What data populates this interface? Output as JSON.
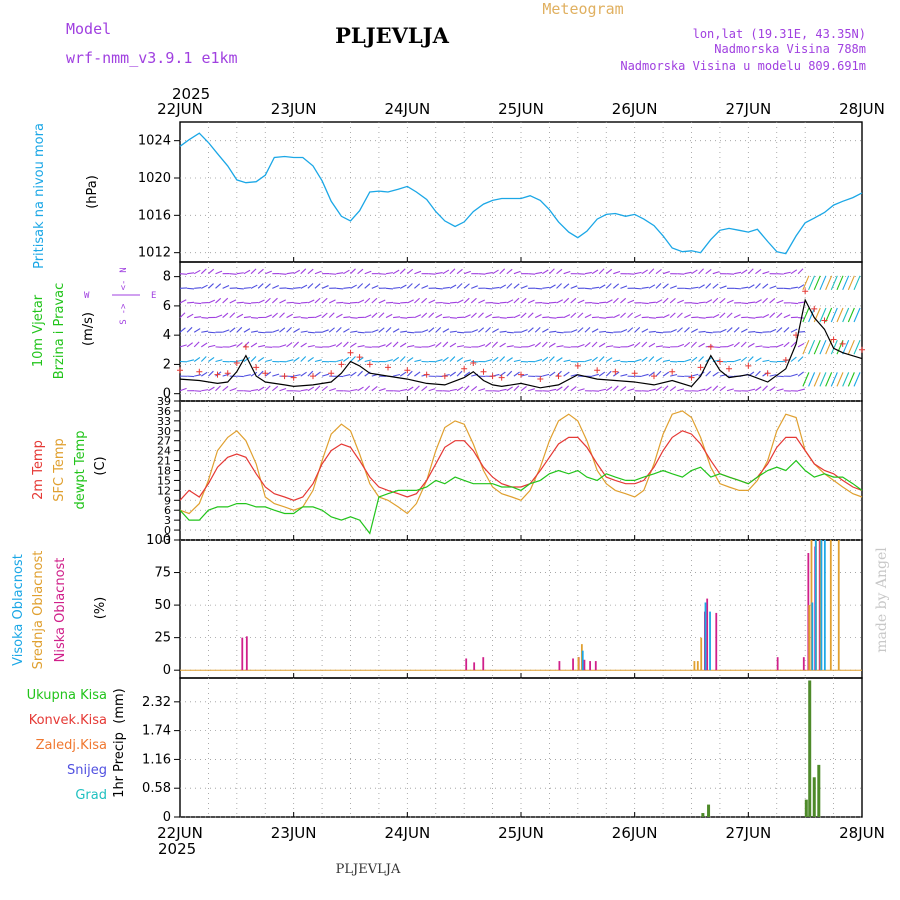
{
  "header": {
    "model_label": "Model",
    "model_name": "wrf-nmm_v3.9.1 e1km",
    "station": "PLJEVLJA",
    "meteogram": "Meteogram",
    "lonlat": "lon,lat (19.31E, 43.35N)",
    "altitude": "Nadmorska Visina 788m",
    "model_altitude": "Nadmorska Visina u modelu 809.691m"
  },
  "footer": {
    "station": "PLJEVLJA",
    "credit": "made by Angel"
  },
  "time_axis": {
    "year_top": "2025",
    "year_bottom": "2025",
    "days": [
      "22JUN",
      "23JUN",
      "24JUN",
      "25JUN",
      "26JUN",
      "27JUN",
      "28JUN"
    ]
  },
  "colors": {
    "pressure": "#1ba7e6",
    "t2m": "#e53935",
    "sfc": "#e0a030",
    "dewpt": "#22c41b",
    "precip": "#4e8a2a",
    "cloud_low": "#d0208a",
    "cloud_mid": "#e0a030",
    "cloud_high": "#1ba7e6",
    "purple": "#a040e0"
  },
  "chart_data": [
    {
      "type": "line",
      "name": "pressure",
      "ylabel_1": "Pritisak na nivou mora",
      "ylabel_2": "(hPa)",
      "ylim": [
        1011,
        1026
      ],
      "yticks": [
        "1012",
        "1016",
        "1020",
        "1024"
      ],
      "x_days": [
        0,
        0.08,
        0.17,
        0.25,
        0.33,
        0.42,
        0.5,
        0.58,
        0.67,
        0.75,
        0.83,
        0.92,
        1,
        1.08,
        1.17,
        1.25,
        1.33,
        1.42,
        1.5,
        1.58,
        1.67,
        1.75,
        1.83,
        1.92,
        2,
        2.08,
        2.17,
        2.25,
        2.33,
        2.42,
        2.5,
        2.58,
        2.67,
        2.75,
        2.83,
        2.92,
        3,
        3.08,
        3.17,
        3.25,
        3.33,
        3.42,
        3.5,
        3.58,
        3.67,
        3.75,
        3.83,
        3.92,
        4,
        4.08,
        4.17,
        4.25,
        4.33,
        4.42,
        4.5,
        4.58,
        4.67,
        4.75,
        4.83,
        4.92,
        5,
        5.08,
        5.17,
        5.25,
        5.33,
        5.42,
        5.5,
        5.58,
        5.67,
        5.75,
        5.83,
        5.92,
        6
      ],
      "values": [
        1023.4,
        1024.1,
        1024.8,
        1023.8,
        1022.6,
        1021.3,
        1019.8,
        1019.5,
        1019.6,
        1020.3,
        1022.2,
        1022.3,
        1022.2,
        1022.2,
        1021.3,
        1019.7,
        1017.5,
        1015.9,
        1015.4,
        1016.5,
        1018.5,
        1018.6,
        1018.5,
        1018.8,
        1019.1,
        1018.5,
        1017.7,
        1016.4,
        1015.4,
        1014.8,
        1015.3,
        1016.4,
        1017.2,
        1017.6,
        1017.8,
        1017.8,
        1017.8,
        1018.1,
        1017.6,
        1016.6,
        1015.3,
        1014.2,
        1013.6,
        1014.3,
        1015.6,
        1016.1,
        1016.2,
        1015.9,
        1016.1,
        1015.6,
        1014.9,
        1013.8,
        1012.5,
        1012.1,
        1012.2,
        1012.0,
        1013.4,
        1014.4,
        1014.6,
        1014.4,
        1014.2,
        1014.5,
        1013.2,
        1012.1,
        1011.9,
        1013.8,
        1015.2,
        1015.7,
        1016.3,
        1017.1,
        1017.5,
        1017.9,
        1018.4
      ]
    },
    {
      "type": "line",
      "name": "wind",
      "ylabel_1": "10m Vjetar",
      "ylabel_2": "Brzina i Pravac",
      "ylabel_3": "(m/s)",
      "compass": [
        "N",
        "S",
        "W",
        "E",
        "<-",
        "->"
      ],
      "ylim": [
        -0.5,
        9
      ],
      "yticks": [
        "0",
        "2",
        "4",
        "6",
        "8"
      ],
      "x_days": [
        0,
        0.17,
        0.33,
        0.42,
        0.5,
        0.58,
        0.67,
        0.75,
        0.92,
        1,
        1.17,
        1.33,
        1.42,
        1.5,
        1.58,
        1.67,
        1.83,
        2,
        2.17,
        2.33,
        2.5,
        2.58,
        2.67,
        2.75,
        2.83,
        3,
        3.17,
        3.33,
        3.5,
        3.67,
        3.83,
        4,
        4.17,
        4.33,
        4.5,
        4.58,
        4.67,
        4.75,
        4.83,
        5,
        5.17,
        5.33,
        5.42,
        5.5,
        5.58,
        5.67,
        5.75,
        5.83,
        6
      ],
      "values": [
        1.0,
        0.9,
        0.7,
        0.8,
        1.5,
        2.6,
        1.2,
        0.8,
        0.6,
        0.5,
        0.6,
        0.8,
        1.4,
        2.2,
        1.9,
        1.4,
        1.2,
        1.0,
        0.7,
        0.6,
        1.1,
        1.5,
        0.9,
        0.6,
        0.5,
        0.7,
        0.4,
        0.6,
        1.3,
        1.0,
        0.9,
        0.8,
        0.6,
        0.9,
        0.5,
        1.2,
        2.6,
        1.6,
        1.1,
        1.3,
        0.8,
        1.7,
        3.4,
        6.4,
        5.2,
        4.4,
        3.1,
        2.8,
        2.4
      ],
      "gust_levels": [
        0,
        1,
        2,
        3,
        4,
        5,
        6,
        7,
        8
      ]
    },
    {
      "type": "line",
      "name": "temperature",
      "ylabel_1": "2m Temp",
      "ylabel_2": "SFC Temp",
      "ylabel_3": "dewpt Temp",
      "ylabel_4": "(C)",
      "ylim": [
        -3,
        39
      ],
      "yticks": [
        "-3",
        "0",
        "3",
        "6",
        "9",
        "12",
        "15",
        "18",
        "21",
        "24",
        "27",
        "30",
        "33",
        "36",
        "39"
      ],
      "x_days": [
        0,
        0.08,
        0.17,
        0.25,
        0.33,
        0.42,
        0.5,
        0.58,
        0.67,
        0.75,
        0.83,
        0.92,
        1,
        1.08,
        1.17,
        1.25,
        1.33,
        1.42,
        1.5,
        1.58,
        1.67,
        1.75,
        1.83,
        1.92,
        2,
        2.08,
        2.17,
        2.25,
        2.33,
        2.42,
        2.5,
        2.58,
        2.67,
        2.75,
        2.83,
        2.92,
        3,
        3.08,
        3.17,
        3.25,
        3.33,
        3.42,
        3.5,
        3.58,
        3.67,
        3.75,
        3.83,
        3.92,
        4,
        4.08,
        4.17,
        4.25,
        4.33,
        4.42,
        4.5,
        4.58,
        4.67,
        4.75,
        4.83,
        4.92,
        5,
        5.08,
        5.17,
        5.25,
        5.33,
        5.42,
        5.5,
        5.58,
        5.67,
        5.75,
        5.83,
        5.92,
        6
      ],
      "series": [
        {
          "name": "2m Temp",
          "values": [
            9,
            12,
            10,
            14,
            19,
            22,
            23,
            22,
            17,
            13,
            11,
            10,
            9,
            10,
            14,
            20,
            24,
            26,
            25,
            21,
            16,
            13,
            12,
            11,
            10,
            11,
            15,
            20,
            25,
            27,
            27,
            24,
            19,
            16,
            14,
            13,
            13,
            14,
            18,
            22,
            26,
            28,
            28,
            25,
            20,
            16,
            15,
            14,
            14,
            15,
            19,
            24,
            28,
            30,
            29,
            26,
            21,
            17,
            16,
            15,
            14,
            16,
            20,
            25,
            28,
            28,
            24,
            20,
            18,
            17,
            15,
            13,
            12
          ]
        },
        {
          "name": "SFC Temp",
          "values": [
            6,
            5,
            8,
            15,
            24,
            28,
            30,
            27,
            20,
            10,
            8,
            7,
            6,
            7,
            12,
            21,
            29,
            32,
            30,
            23,
            14,
            10,
            9,
            7,
            5,
            8,
            15,
            24,
            31,
            33,
            32,
            26,
            18,
            13,
            11,
            10,
            9,
            12,
            19,
            27,
            33,
            35,
            33,
            27,
            18,
            14,
            12,
            11,
            10,
            12,
            20,
            29,
            35,
            36,
            34,
            28,
            19,
            14,
            13,
            12,
            12,
            15,
            21,
            30,
            35,
            34,
            24,
            20,
            17,
            15,
            13,
            11,
            10
          ]
        },
        {
          "name": "dewpt Temp",
          "values": [
            6,
            3,
            3,
            6,
            7,
            7,
            8,
            8,
            7,
            7,
            6,
            5,
            5,
            7,
            7,
            6,
            4,
            3,
            4,
            3,
            -1,
            10,
            11,
            12,
            12,
            12,
            13,
            15,
            14,
            16,
            15,
            14,
            14,
            14,
            13,
            13,
            12,
            14,
            15,
            17,
            18,
            17,
            18,
            16,
            15,
            17,
            16,
            15,
            15,
            16,
            17,
            18,
            17,
            16,
            18,
            19,
            16,
            17,
            16,
            15,
            14,
            16,
            18,
            19,
            18,
            21,
            18,
            16,
            17,
            16,
            16,
            14,
            12
          ]
        }
      ]
    },
    {
      "type": "bar",
      "name": "cloud",
      "ylabel_1": "Visoka Oblacnost",
      "ylabel_2": "Srednja Oblacnost",
      "ylabel_3": "Niska Oblacnost",
      "ylabel_4": "(%)",
      "ylim": [
        -6,
        100
      ],
      "yticks": [
        "0",
        "25",
        "50",
        "75",
        "100"
      ],
      "series": [
        {
          "name": "Niska",
          "x_days": [
            0.54,
            0.58,
            2.51,
            2.58,
            2.66,
            3.33,
            3.45,
            3.5,
            3.55,
            3.6,
            3.65,
            4.61,
            4.63,
            4.71,
            5.25,
            5.48,
            5.52,
            5.58,
            5.62
          ],
          "values": [
            25,
            26,
            9,
            6,
            10,
            7,
            9,
            10,
            8,
            7,
            7,
            45,
            55,
            44,
            10,
            10,
            90,
            95,
            100
          ]
        },
        {
          "name": "Srednja",
          "x_days": [
            3.48,
            3.51,
            4.5,
            4.53,
            4.56,
            5.51,
            5.53,
            5.57,
            5.61,
            5.7,
            5.77
          ],
          "values": [
            10,
            20,
            7,
            7,
            25,
            50,
            100,
            100,
            100,
            100,
            100
          ]
        },
        {
          "name": "Visoka",
          "x_days": [
            3.5,
            4.58,
            4.62,
            5.52,
            5.55,
            5.6,
            5.63
          ],
          "values": [
            15,
            52,
            45,
            52,
            100,
            100,
            100
          ]
        }
      ]
    },
    {
      "type": "bar",
      "name": "precip",
      "ylabel_1": "1hr Precip",
      "ylabel_2": "(mm)",
      "legend": [
        "Ukupna Kisa",
        "Konvek.Kisa",
        "Zaledj.Kisa",
        "Snijeg",
        "Grad"
      ],
      "ylim": [
        0,
        2.8
      ],
      "yticks": [
        "0",
        "0.58",
        "1.16",
        "1.74",
        "2.32"
      ],
      "x_days": [
        4.6,
        4.65,
        5.51,
        5.54,
        5.58,
        5.62
      ],
      "values": [
        0.08,
        0.25,
        0.35,
        2.75,
        0.8,
        1.05
      ]
    }
  ]
}
